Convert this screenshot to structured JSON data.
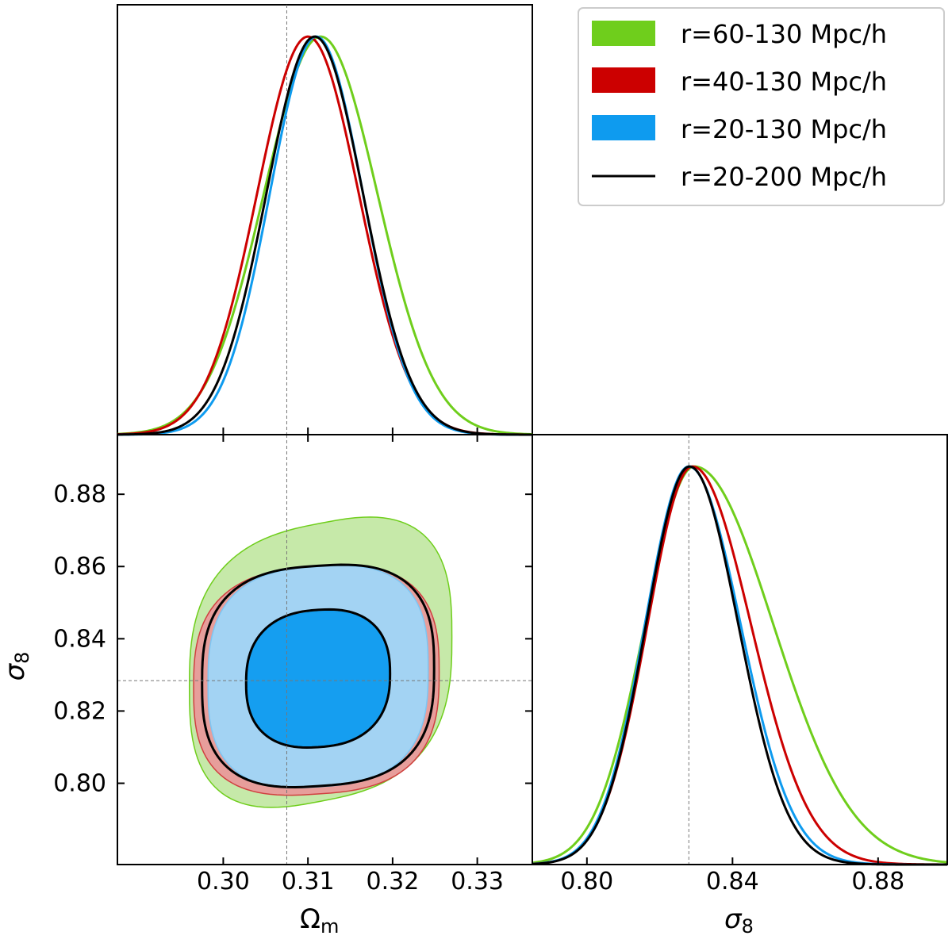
{
  "colors": {
    "r60_130": "#6fce1c",
    "r40_130": "#cc0000",
    "r20_130": "#0e9bef",
    "r20_200": "#000000"
  },
  "legend": {
    "items": [
      {
        "label": "r=60-130 Mpc/h",
        "color": "#6fce1c",
        "kind": "patch"
      },
      {
        "label": "r=40-130 Mpc/h",
        "color": "#cc0000",
        "kind": "patch"
      },
      {
        "label": "r=20-130 Mpc/h",
        "color": "#0e9bef",
        "kind": "patch"
      },
      {
        "label": "r=20-200 Mpc/h",
        "color": "#000000",
        "kind": "line"
      }
    ]
  },
  "axes": {
    "omega_label_main": "Ω",
    "omega_label_sub": "m",
    "sigma_label_main": "σ",
    "sigma_label_sub": "8"
  },
  "chart_data": [
    {
      "type": "line",
      "panel": "marginal Ω_m",
      "xlim": [
        0.2875,
        0.3365
      ],
      "ylim": [
        0,
        1.08
      ],
      "xticks": [
        0.3,
        0.31,
        0.32,
        0.33
      ],
      "ytick_labels_shown": false,
      "reference_line": {
        "x": 0.3075
      },
      "series": [
        {
          "name": "r=60-130 Mpc/h",
          "mean": 0.3115,
          "sigma": 0.0067
        },
        {
          "name": "r=40-130 Mpc/h",
          "mean": 0.31,
          "sigma": 0.006
        },
        {
          "name": "r=20-130 Mpc/h",
          "mean": 0.311,
          "sigma": 0.0055
        },
        {
          "name": "r=20-200 Mpc/h",
          "mean": 0.3108,
          "sigma": 0.0057
        }
      ]
    },
    {
      "type": "contour",
      "panel": "joint Ω_m – σ8",
      "xlim": [
        0.2875,
        0.3365
      ],
      "ylim": [
        0.7775,
        0.8965
      ],
      "xticks": [
        0.3,
        0.31,
        0.32,
        0.33
      ],
      "xtick_labels": [
        "0.30",
        "0.31",
        "0.32",
        "0.33"
      ],
      "yticks": [
        0.8,
        0.82,
        0.84,
        0.86,
        0.88
      ],
      "ytick_labels": [
        "0.80",
        "0.82",
        "0.84",
        "0.86",
        "0.88"
      ],
      "reference_lines": {
        "x": 0.3075,
        "y": 0.8284
      },
      "contours": [
        {
          "name": "r=60-130 Mpc/h",
          "level": "2σ",
          "center": [
            0.3115,
            0.8335
          ],
          "half_width": [
            0.0155,
            0.0385
          ]
        },
        {
          "name": "r=40-130 Mpc/h",
          "level": "2σ",
          "center": [
            0.311,
            0.8285
          ],
          "half_width": [
            0.0145,
            0.0315
          ]
        },
        {
          "name": "r=20-130 Mpc/h",
          "level": "2σ",
          "center": [
            0.3112,
            0.8295
          ],
          "half_width": [
            0.013,
            0.0305
          ]
        },
        {
          "name": "r=20-130 Mpc/h",
          "level": "1σ",
          "center": [
            0.3112,
            0.8287
          ],
          "half_width": [
            0.0085,
            0.0188
          ]
        },
        {
          "name": "r=20-200 Mpc/h",
          "level": "2σ",
          "center": [
            0.3112,
            0.8297
          ],
          "half_width": [
            0.0137,
            0.0305
          ]
        },
        {
          "name": "r=20-200 Mpc/h",
          "level": "1σ",
          "center": [
            0.3112,
            0.829
          ],
          "half_width": [
            0.0085,
            0.019
          ]
        }
      ]
    },
    {
      "type": "line",
      "panel": "marginal σ8",
      "xlim": [
        0.785,
        0.899
      ],
      "ylim": [
        0,
        1.08
      ],
      "xticks": [
        0.8,
        0.84,
        0.88
      ],
      "xtick_labels": [
        "0.80",
        "0.84",
        "0.88"
      ],
      "reference_line": {
        "x": 0.828
      },
      "series": [
        {
          "name": "r=60-130 Mpc/h",
          "mean": 0.8295,
          "sigma": 0.0135,
          "skew_right": 1.6
        },
        {
          "name": "r=40-130 Mpc/h",
          "mean": 0.829,
          "sigma": 0.0123,
          "skew_right": 1.3
        },
        {
          "name": "r=20-130 Mpc/h",
          "mean": 0.828,
          "sigma": 0.012,
          "skew_right": 1.18
        },
        {
          "name": "r=20-200 Mpc/h",
          "mean": 0.8282,
          "sigma": 0.0119,
          "skew_right": 1.12
        }
      ]
    }
  ]
}
